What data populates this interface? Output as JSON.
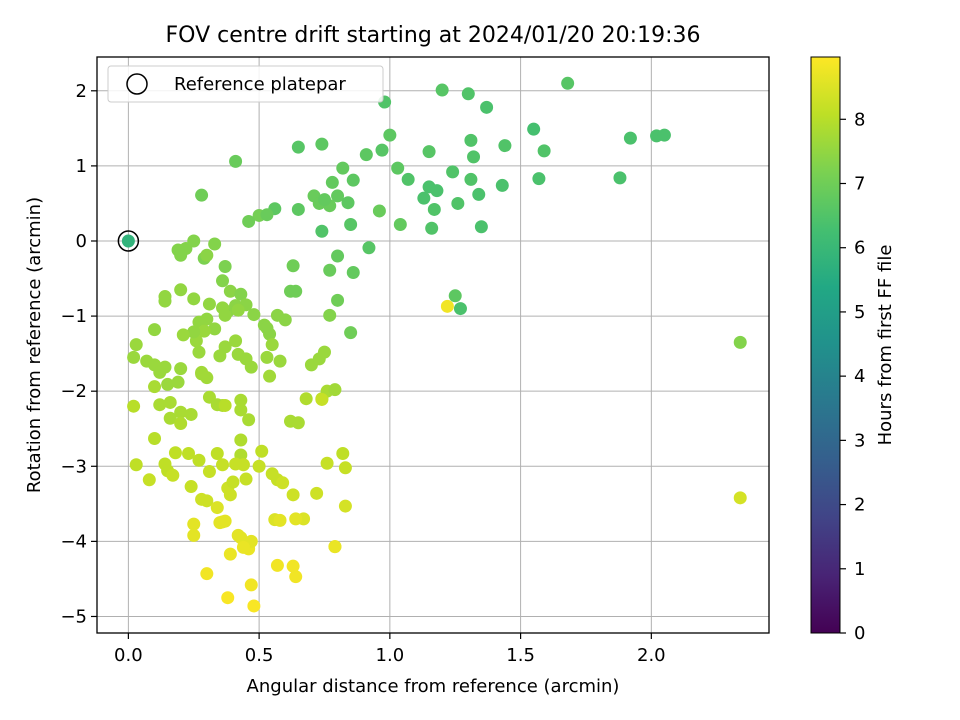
{
  "chart_data": {
    "type": "scatter",
    "title": "FOV centre drift starting at 2024/01/20 20:19:36",
    "xlabel": "Angular distance from reference (arcmin)",
    "ylabel": "Rotation from reference (arcmin)",
    "xlim": [
      -0.12,
      2.45
    ],
    "ylim": [
      -5.22,
      2.45
    ],
    "xticks": [
      0.0,
      0.5,
      1.0,
      1.5,
      2.0
    ],
    "xtick_labels": [
      "0.0",
      "0.5",
      "1.0",
      "1.5",
      "2.0"
    ],
    "yticks": [
      2,
      1,
      0,
      -1,
      -2,
      -3,
      -4,
      -5
    ],
    "ytick_labels": [
      "2",
      "1",
      "0",
      "−1",
      "−2",
      "−3",
      "−4",
      "−5"
    ],
    "grid": true,
    "legend": {
      "position": "upper-left",
      "entries": [
        "Reference platepar"
      ]
    },
    "reference_point": {
      "x": 0.0,
      "y": 0.0,
      "label": "Reference platepar",
      "marker": "open-circle"
    },
    "colorbar": {
      "label": "Hours from first FF file",
      "range": [
        0,
        8.97
      ],
      "ticks": [
        0,
        1,
        2,
        3,
        4,
        5,
        6,
        7,
        8
      ],
      "tick_labels": [
        "0",
        "1",
        "2",
        "3",
        "4",
        "5",
        "6",
        "7",
        "8"
      ],
      "colormap": "viridis"
    },
    "series": [
      {
        "x": [
          0.0,
          1.68,
          1.2,
          1.3,
          1.37,
          0.98,
          1.55,
          1.92,
          2.02,
          2.05,
          0.41,
          0.65,
          0.74,
          0.91,
          0.97,
          1.0,
          1.15,
          1.31,
          1.44,
          1.59,
          1.24,
          1.32,
          1.07,
          1.31,
          1.57,
          1.88,
          1.15,
          1.18,
          1.13,
          1.34,
          1.43,
          1.03,
          0.86,
          0.82,
          0.78,
          0.8,
          0.71,
          0.73,
          0.77,
          0.75,
          0.84,
          0.65,
          0.56,
          0.28,
          0.5,
          0.53,
          0.46,
          1.04,
          0.96,
          1.17,
          1.26,
          1.16,
          1.35,
          0.74,
          0.85,
          0.92,
          0.8,
          0.63,
          0.77,
          0.86,
          1.25,
          1.27,
          0.62,
          0.64,
          0.8,
          0.85,
          2.34
        ],
        "y": [
          0.0,
          2.1,
          2.01,
          1.96,
          1.78,
          1.85,
          1.49,
          1.37,
          1.4,
          1.41,
          1.06,
          1.25,
          1.29,
          1.15,
          1.21,
          1.41,
          1.19,
          1.34,
          1.27,
          1.2,
          0.92,
          1.12,
          0.82,
          0.82,
          0.83,
          0.84,
          0.72,
          0.67,
          0.57,
          0.62,
          0.74,
          0.97,
          0.81,
          0.97,
          0.78,
          0.6,
          0.6,
          0.5,
          0.47,
          0.55,
          0.51,
          0.42,
          0.43,
          0.61,
          0.34,
          0.35,
          0.26,
          0.22,
          0.4,
          0.42,
          0.5,
          0.17,
          0.19,
          0.13,
          0.22,
          -0.09,
          -0.2,
          -0.33,
          -0.39,
          -0.42,
          -0.73,
          -0.9,
          -0.67,
          -0.67,
          -0.79,
          -1.22,
          -1.35
        ],
        "hours": [
          5.8,
          6.6,
          6.6,
          6.5,
          6.4,
          6.5,
          6.3,
          6.4,
          6.4,
          6.4,
          6.9,
          6.6,
          6.7,
          6.7,
          6.6,
          6.7,
          6.6,
          6.5,
          6.5,
          6.5,
          6.5,
          6.5,
          6.5,
          6.5,
          6.4,
          6.4,
          6.4,
          6.4,
          6.4,
          6.4,
          6.4,
          6.7,
          6.7,
          6.8,
          6.8,
          6.8,
          6.9,
          6.9,
          6.9,
          6.8,
          6.7,
          6.7,
          6.7,
          7.0,
          7.1,
          6.9,
          7.0,
          6.8,
          6.9,
          6.5,
          6.5,
          6.5,
          6.4,
          6.5,
          6.6,
          6.6,
          6.8,
          7.0,
          6.9,
          6.8,
          6.7,
          6.4,
          7.0,
          7.0,
          7.0,
          7.0,
          7.3
        ]
      },
      {
        "x": [
          0.29,
          0.37,
          0.22,
          0.25,
          0.19,
          0.2,
          0.3,
          0.33,
          0.36,
          0.39,
          0.43,
          0.45,
          0.41,
          0.42,
          0.38,
          0.48,
          0.57,
          0.6,
          0.52,
          0.53,
          0.54,
          0.3,
          0.27,
          0.31,
          0.36,
          0.42,
          0.37,
          0.33,
          0.25,
          0.2,
          0.14,
          0.14,
          0.1,
          0.03,
          0.07,
          0.02,
          0.1,
          0.14,
          0.12,
          0.15,
          0.19,
          0.2,
          0.26,
          0.27,
          0.35,
          0.37,
          0.42,
          0.45,
          0.47,
          0.41,
          0.29,
          0.25,
          0.21,
          0.16,
          0.12,
          0.1,
          0.16,
          0.2,
          0.24,
          0.31,
          0.34,
          0.28,
          0.28,
          0.3,
          0.36,
          0.43,
          0.46,
          0.53,
          0.55,
          0.58,
          0.62,
          0.65,
          0.68,
          0.74,
          0.76,
          0.79,
          0.7,
          0.73,
          0.75,
          0.77,
          0.54,
          0.43,
          0.43,
          0.43
        ],
        "y": [
          -0.23,
          -0.34,
          -0.1,
          0.0,
          -0.12,
          -0.19,
          -0.19,
          -0.04,
          -0.53,
          -0.67,
          -0.71,
          -0.85,
          -0.86,
          -0.92,
          -0.94,
          -0.98,
          -0.99,
          -1.05,
          -1.12,
          -1.16,
          -1.24,
          -1.04,
          -1.08,
          -0.84,
          -0.89,
          -0.92,
          -0.99,
          -1.17,
          -0.77,
          -0.65,
          -0.74,
          -0.8,
          -1.18,
          -1.38,
          -1.6,
          -1.55,
          -1.65,
          -1.68,
          -1.75,
          -1.91,
          -1.88,
          -1.7,
          -1.33,
          -1.48,
          -1.53,
          -1.41,
          -1.51,
          -1.57,
          -1.68,
          -1.33,
          -1.2,
          -1.21,
          -1.25,
          -2.36,
          -2.18,
          -1.94,
          -2.15,
          -2.28,
          -2.31,
          -2.08,
          -2.18,
          -1.77,
          -1.75,
          -1.82,
          -2.19,
          -2.12,
          -2.38,
          -1.55,
          -1.38,
          -1.6,
          -2.4,
          -2.42,
          -2.1,
          -2.1,
          -2.0,
          -1.98,
          -1.65,
          -1.57,
          -1.48,
          -0.99,
          -1.8,
          -2.25,
          -2.65,
          -2.85
        ],
        "hours": [
          7.2,
          7.2,
          7.3,
          7.3,
          7.3,
          7.3,
          7.4,
          7.3,
          7.3,
          7.4,
          7.3,
          7.4,
          7.4,
          7.4,
          7.4,
          7.4,
          7.4,
          7.4,
          7.4,
          7.4,
          7.4,
          7.5,
          7.5,
          7.5,
          7.5,
          7.5,
          7.5,
          7.5,
          7.5,
          7.5,
          7.5,
          7.5,
          7.5,
          7.6,
          7.6,
          7.6,
          7.6,
          7.6,
          7.6,
          7.6,
          7.6,
          7.6,
          7.6,
          7.6,
          7.6,
          7.6,
          7.6,
          7.6,
          7.6,
          7.6,
          7.6,
          7.5,
          7.6,
          7.8,
          7.8,
          7.8,
          7.8,
          7.8,
          7.8,
          7.8,
          7.8,
          7.7,
          7.7,
          7.7,
          7.8,
          7.8,
          7.8,
          7.6,
          7.6,
          7.6,
          7.8,
          7.8,
          7.9,
          8.0,
          7.8,
          7.7,
          7.6,
          7.6,
          7.6,
          7.3,
          7.7,
          7.8,
          7.9,
          7.9
        ]
      },
      {
        "x": [
          0.02,
          0.03,
          0.1,
          0.08,
          0.14,
          0.15,
          0.17,
          0.18,
          0.23,
          0.24,
          0.27,
          0.28,
          0.3,
          0.34,
          0.36,
          0.37,
          0.38,
          0.39,
          0.4,
          0.44,
          0.45,
          0.43,
          0.46,
          0.47,
          0.5,
          0.51,
          0.55,
          0.57,
          0.59,
          0.63,
          0.67,
          0.72,
          0.76,
          0.79,
          0.83,
          0.82,
          0.83,
          0.41,
          0.25,
          0.25,
          0.31,
          0.34,
          0.36,
          0.39,
          0.42,
          0.44,
          0.38,
          0.37,
          0.3,
          0.35,
          0.47,
          0.48,
          0.56,
          0.57,
          0.64,
          0.63,
          0.64,
          0.79,
          0.58,
          0.2,
          1.22,
          2.34,
          0.74
        ],
        "y": [
          -2.2,
          -2.98,
          -2.63,
          -3.18,
          -2.97,
          -3.06,
          -3.12,
          -2.82,
          -2.83,
          -3.27,
          -2.92,
          -3.44,
          -3.46,
          -2.83,
          -2.98,
          -2.19,
          -3.29,
          -3.38,
          -3.21,
          -2.98,
          -3.17,
          -3.95,
          -4.1,
          -4.0,
          -3.0,
          -2.8,
          -3.1,
          -3.18,
          -3.22,
          -3.38,
          -3.7,
          -3.36,
          -2.96,
          -4.07,
          -3.53,
          -2.83,
          -3.02,
          -2.97,
          -3.77,
          -3.92,
          -3.07,
          -3.55,
          -3.74,
          -4.17,
          -3.92,
          -4.08,
          -4.75,
          -3.73,
          -4.43,
          -3.75,
          -4.58,
          -4.86,
          -3.71,
          -4.32,
          -4.47,
          -4.33,
          -3.7,
          -4.07,
          -3.72,
          -2.43,
          -0.87,
          -3.42,
          -2.11
        ],
        "hours": [
          8.0,
          8.1,
          8.0,
          8.2,
          8.1,
          8.1,
          8.2,
          8.1,
          8.1,
          8.2,
          8.1,
          8.3,
          8.3,
          8.1,
          8.2,
          8.0,
          8.3,
          8.3,
          8.2,
          8.2,
          8.2,
          8.6,
          8.7,
          8.6,
          8.2,
          8.1,
          8.2,
          8.2,
          8.3,
          8.3,
          8.5,
          8.3,
          8.2,
          8.7,
          8.4,
          8.1,
          8.2,
          8.2,
          8.6,
          8.6,
          8.2,
          8.5,
          8.6,
          8.7,
          8.6,
          8.7,
          8.9,
          8.6,
          8.8,
          8.6,
          8.8,
          8.9,
          8.5,
          8.8,
          8.8,
          8.8,
          8.6,
          8.7,
          8.6,
          7.9,
          8.8,
          8.4,
          8.2
        ]
      }
    ]
  }
}
